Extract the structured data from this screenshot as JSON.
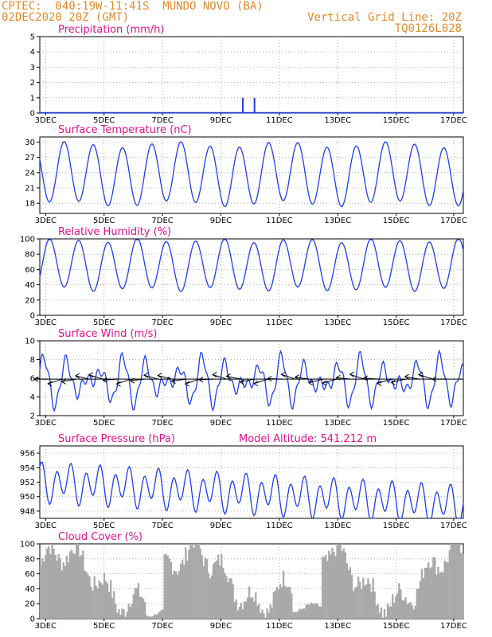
{
  "header": {
    "line1_left": "CPTEC:  040:19W-11:41S  MUNDO NOVO (BA)",
    "line2_left": "02DEC2020 20Z (GMT)",
    "line1_right": "Vertical Grid Line: 20Z",
    "line2_right": "TQ0126L028"
  },
  "colors": {
    "header": "#e08a2a",
    "title": "#e0118a",
    "line": "#1f3fe6",
    "bar": "#a9a9a9",
    "grid": "#9a9a9a"
  },
  "x_ticks": [
    "3DEC",
    "5DEC",
    "7DEC",
    "9DEC",
    "11DEC",
    "13DEC",
    "15DEC",
    "17DEC"
  ],
  "chart_data": [
    {
      "id": "precip",
      "type": "bar",
      "title": "Precipitation (mm/h)",
      "ylim": [
        0,
        5
      ],
      "yticks": [
        "0",
        "1",
        "2",
        "3",
        "4",
        "5"
      ],
      "x_days_since_2dec_20z": [
        6.95,
        7.35
      ],
      "values": [
        1.0,
        1.0
      ]
    },
    {
      "id": "temp",
      "type": "line",
      "title": "Surface Temperature (nC)",
      "ylim": [
        16,
        31
      ],
      "yticks": [
        "18",
        "21",
        "24",
        "27",
        "30"
      ],
      "pattern": {
        "min": 18,
        "max": 29.5,
        "peak_hour_utc": 17
      }
    },
    {
      "id": "rh",
      "type": "line",
      "title": "Relative Humidity (%)",
      "ylim": [
        0,
        100
      ],
      "yticks": [
        "0",
        "20",
        "40",
        "60",
        "80",
        "100"
      ],
      "pattern": {
        "min": 35,
        "max": 98
      }
    },
    {
      "id": "wind",
      "type": "line",
      "title": "Surface Wind (m/s)",
      "ylim": [
        2,
        10
      ],
      "yticks": [
        "2",
        "4",
        "6",
        "8",
        "10"
      ],
      "pattern": {
        "mean": 5.7,
        "amp": 1.8
      },
      "barbs": "easterly"
    },
    {
      "id": "pres",
      "type": "line",
      "title": "Surface Pressure (hPa)",
      "subtitle": "Model Altitude: 541.212 m",
      "ylim": [
        947,
        957
      ],
      "yticks": [
        "948",
        "950",
        "952",
        "954",
        "956"
      ],
      "pattern": {
        "mean": 952,
        "amp": 2.5
      }
    },
    {
      "id": "cloud",
      "type": "area",
      "title": "Cloud Cover (%)",
      "ylim": [
        0,
        100
      ],
      "yticks": [
        "0",
        "20",
        "40",
        "60",
        "80",
        "100"
      ],
      "pattern": {
        "mean": 55,
        "amp": 40
      }
    }
  ]
}
